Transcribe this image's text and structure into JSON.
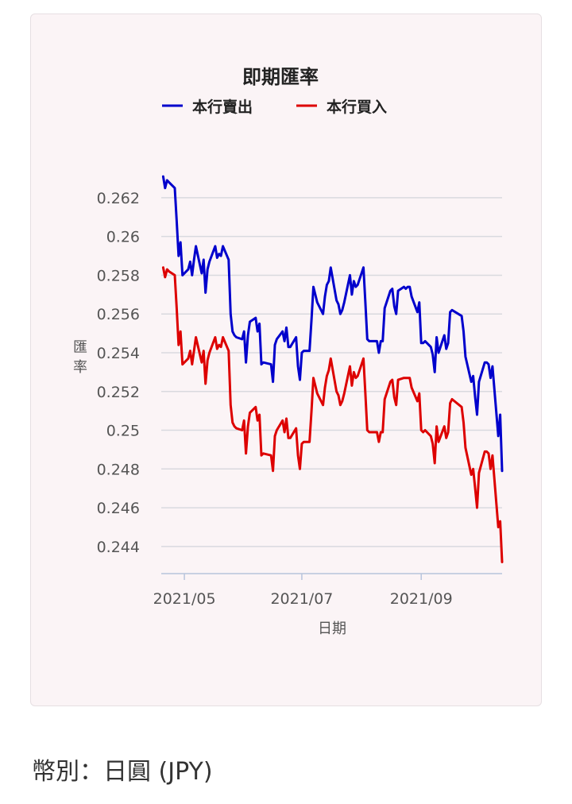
{
  "chart_data": {
    "type": "line",
    "title": "即期匯率",
    "xlabel": "日期",
    "ylabel": "匯率",
    "ylim": [
      0.2426,
      0.2638
    ],
    "yticks": [
      "0.244",
      "0.246",
      "0.248",
      "0.25",
      "0.252",
      "0.254",
      "0.256",
      "0.258",
      "0.26",
      "0.262"
    ],
    "xticks": [
      {
        "date": "2021-05-01",
        "label": "2021/05"
      },
      {
        "date": "2021-07-01",
        "label": "2021/07"
      },
      {
        "date": "2021-09-01",
        "label": "2021/09"
      }
    ],
    "xrange": [
      "2021-04-19",
      "2021-10-13"
    ],
    "grid": true,
    "legend_position": "top",
    "series": [
      {
        "name": "本行賣出",
        "color": "#0000cc",
        "points": [
          [
            "2021-04-20",
            0.2631
          ],
          [
            "2021-04-21",
            0.2625
          ],
          [
            "2021-04-22",
            0.2629
          ],
          [
            "2021-04-23",
            0.2628
          ],
          [
            "2021-04-26",
            0.2625
          ],
          [
            "2021-04-27",
            0.2608
          ],
          [
            "2021-04-28",
            0.259
          ],
          [
            "2021-04-29",
            0.2597
          ],
          [
            "2021-04-30",
            0.258
          ],
          [
            "2021-05-03",
            0.2583
          ],
          [
            "2021-05-04",
            0.2587
          ],
          [
            "2021-05-05",
            0.258
          ],
          [
            "2021-05-06",
            0.2588
          ],
          [
            "2021-05-07",
            0.2595
          ],
          [
            "2021-05-10",
            0.2581
          ],
          [
            "2021-05-11",
            0.2588
          ],
          [
            "2021-05-12",
            0.2571
          ],
          [
            "2021-05-13",
            0.2583
          ],
          [
            "2021-05-14",
            0.2587
          ],
          [
            "2021-05-17",
            0.2595
          ],
          [
            "2021-05-18",
            0.2589
          ],
          [
            "2021-05-19",
            0.2591
          ],
          [
            "2021-05-20",
            0.259
          ],
          [
            "2021-05-21",
            0.2595
          ],
          [
            "2021-05-24",
            0.2588
          ],
          [
            "2021-05-25",
            0.256
          ],
          [
            "2021-05-26",
            0.2551
          ],
          [
            "2021-05-27",
            0.2549
          ],
          [
            "2021-05-28",
            0.2548
          ],
          [
            "2021-05-31",
            0.2547
          ],
          [
            "2021-06-01",
            0.2551
          ],
          [
            "2021-06-02",
            0.2535
          ],
          [
            "2021-06-03",
            0.2549
          ],
          [
            "2021-06-04",
            0.2556
          ],
          [
            "2021-06-07",
            0.2558
          ],
          [
            "2021-06-08",
            0.2551
          ],
          [
            "2021-06-09",
            0.2555
          ],
          [
            "2021-06-10",
            0.2534
          ],
          [
            "2021-06-11",
            0.2535
          ],
          [
            "2021-06-15",
            0.2534
          ],
          [
            "2021-06-16",
            0.2525
          ],
          [
            "2021-06-17",
            0.2544
          ],
          [
            "2021-06-18",
            0.2547
          ],
          [
            "2021-06-21",
            0.2551
          ],
          [
            "2021-06-22",
            0.2546
          ],
          [
            "2021-06-23",
            0.2553
          ],
          [
            "2021-06-24",
            0.2543
          ],
          [
            "2021-06-25",
            0.2543
          ],
          [
            "2021-06-28",
            0.2548
          ],
          [
            "2021-06-29",
            0.2533
          ],
          [
            "2021-06-30",
            0.2526
          ],
          [
            "2021-07-01",
            0.254
          ],
          [
            "2021-07-02",
            0.2541
          ],
          [
            "2021-07-05",
            0.2541
          ],
          [
            "2021-07-06",
            0.2557
          ],
          [
            "2021-07-07",
            0.2574
          ],
          [
            "2021-07-08",
            0.257
          ],
          [
            "2021-07-09",
            0.2566
          ],
          [
            "2021-07-12",
            0.256
          ],
          [
            "2021-07-13",
            0.2569
          ],
          [
            "2021-07-14",
            0.2575
          ],
          [
            "2021-07-15",
            0.2577
          ],
          [
            "2021-07-16",
            0.2584
          ],
          [
            "2021-07-19",
            0.2567
          ],
          [
            "2021-07-20",
            0.2565
          ],
          [
            "2021-07-21",
            0.256
          ],
          [
            "2021-07-22",
            0.2562
          ],
          [
            "2021-07-23",
            0.2566
          ],
          [
            "2021-07-26",
            0.258
          ],
          [
            "2021-07-27",
            0.257
          ],
          [
            "2021-07-28",
            0.2577
          ],
          [
            "2021-07-29",
            0.2574
          ],
          [
            "2021-07-30",
            0.2575
          ],
          [
            "2021-08-02",
            0.2584
          ],
          [
            "2021-08-03",
            0.2566
          ],
          [
            "2021-08-04",
            0.2547
          ],
          [
            "2021-08-05",
            0.2546
          ],
          [
            "2021-08-06",
            0.2546
          ],
          [
            "2021-08-09",
            0.2546
          ],
          [
            "2021-08-10",
            0.254
          ],
          [
            "2021-08-11",
            0.2546
          ],
          [
            "2021-08-12",
            0.2546
          ],
          [
            "2021-08-13",
            0.2563
          ],
          [
            "2021-08-16",
            0.2572
          ],
          [
            "2021-08-17",
            0.2573
          ],
          [
            "2021-08-18",
            0.2564
          ],
          [
            "2021-08-19",
            0.256
          ],
          [
            "2021-08-20",
            0.2572
          ],
          [
            "2021-08-23",
            0.2574
          ],
          [
            "2021-08-24",
            0.2573
          ],
          [
            "2021-08-25",
            0.2574
          ],
          [
            "2021-08-26",
            0.2574
          ],
          [
            "2021-08-27",
            0.2569
          ],
          [
            "2021-08-30",
            0.2561
          ],
          [
            "2021-08-31",
            0.2566
          ],
          [
            "2021-09-01",
            0.2545
          ],
          [
            "2021-09-02",
            0.2545
          ],
          [
            "2021-09-03",
            0.2546
          ],
          [
            "2021-09-06",
            0.2543
          ],
          [
            "2021-09-07",
            0.2539
          ],
          [
            "2021-09-08",
            0.253
          ],
          [
            "2021-09-09",
            0.2548
          ],
          [
            "2021-09-10",
            0.254
          ],
          [
            "2021-09-13",
            0.2549
          ],
          [
            "2021-09-14",
            0.2542
          ],
          [
            "2021-09-15",
            0.2545
          ],
          [
            "2021-09-16",
            0.2561
          ],
          [
            "2021-09-17",
            0.2562
          ],
          [
            "2021-09-22",
            0.2559
          ],
          [
            "2021-09-23",
            0.2551
          ],
          [
            "2021-09-24",
            0.2538
          ],
          [
            "2021-09-27",
            0.2525
          ],
          [
            "2021-09-28",
            0.2528
          ],
          [
            "2021-09-29",
            0.2517
          ],
          [
            "2021-09-30",
            0.2508
          ],
          [
            "2021-10-01",
            0.2525
          ],
          [
            "2021-10-04",
            0.2535
          ],
          [
            "2021-10-05",
            0.2535
          ],
          [
            "2021-10-06",
            0.2534
          ],
          [
            "2021-10-07",
            0.2527
          ],
          [
            "2021-10-08",
            0.2533
          ],
          [
            "2021-10-11",
            0.2497
          ],
          [
            "2021-10-12",
            0.2508
          ],
          [
            "2021-10-13",
            0.2479
          ]
        ]
      },
      {
        "name": "本行買入",
        "color": "#dd0000",
        "points": [
          [
            "2021-04-20",
            0.2584
          ],
          [
            "2021-04-21",
            0.2579
          ],
          [
            "2021-04-22",
            0.2583
          ],
          [
            "2021-04-23",
            0.2582
          ],
          [
            "2021-04-26",
            0.258
          ],
          [
            "2021-04-27",
            0.2563
          ],
          [
            "2021-04-28",
            0.2544
          ],
          [
            "2021-04-29",
            0.2551
          ],
          [
            "2021-04-30",
            0.2534
          ],
          [
            "2021-05-03",
            0.2537
          ],
          [
            "2021-05-04",
            0.2541
          ],
          [
            "2021-05-05",
            0.2534
          ],
          [
            "2021-05-06",
            0.2541
          ],
          [
            "2021-05-07",
            0.2548
          ],
          [
            "2021-05-10",
            0.2535
          ],
          [
            "2021-05-11",
            0.2541
          ],
          [
            "2021-05-12",
            0.2524
          ],
          [
            "2021-05-13",
            0.2536
          ],
          [
            "2021-05-14",
            0.254
          ],
          [
            "2021-05-17",
            0.2548
          ],
          [
            "2021-05-18",
            0.2542
          ],
          [
            "2021-05-19",
            0.2544
          ],
          [
            "2021-05-20",
            0.2543
          ],
          [
            "2021-05-21",
            0.2548
          ],
          [
            "2021-05-24",
            0.2541
          ],
          [
            "2021-05-25",
            0.2513
          ],
          [
            "2021-05-26",
            0.2504
          ],
          [
            "2021-05-27",
            0.2502
          ],
          [
            "2021-05-28",
            0.2501
          ],
          [
            "2021-05-31",
            0.25
          ],
          [
            "2021-06-01",
            0.2505
          ],
          [
            "2021-06-02",
            0.2488
          ],
          [
            "2021-06-03",
            0.2502
          ],
          [
            "2021-06-04",
            0.2509
          ],
          [
            "2021-06-07",
            0.2512
          ],
          [
            "2021-06-08",
            0.2505
          ],
          [
            "2021-06-09",
            0.2508
          ],
          [
            "2021-06-10",
            0.2487
          ],
          [
            "2021-06-11",
            0.2488
          ],
          [
            "2021-06-15",
            0.2487
          ],
          [
            "2021-06-16",
            0.2479
          ],
          [
            "2021-06-17",
            0.2497
          ],
          [
            "2021-06-18",
            0.25
          ],
          [
            "2021-06-21",
            0.2505
          ],
          [
            "2021-06-22",
            0.2499
          ],
          [
            "2021-06-23",
            0.2506
          ],
          [
            "2021-06-24",
            0.2496
          ],
          [
            "2021-06-25",
            0.2496
          ],
          [
            "2021-06-28",
            0.2501
          ],
          [
            "2021-06-29",
            0.2487
          ],
          [
            "2021-06-30",
            0.248
          ],
          [
            "2021-07-01",
            0.2493
          ],
          [
            "2021-07-02",
            0.2494
          ],
          [
            "2021-07-05",
            0.2494
          ],
          [
            "2021-07-06",
            0.251
          ],
          [
            "2021-07-07",
            0.2527
          ],
          [
            "2021-07-08",
            0.2523
          ],
          [
            "2021-07-09",
            0.2519
          ],
          [
            "2021-07-12",
            0.2513
          ],
          [
            "2021-07-13",
            0.2522
          ],
          [
            "2021-07-14",
            0.2528
          ],
          [
            "2021-07-15",
            0.2531
          ],
          [
            "2021-07-16",
            0.2537
          ],
          [
            "2021-07-19",
            0.252
          ],
          [
            "2021-07-20",
            0.2518
          ],
          [
            "2021-07-21",
            0.2513
          ],
          [
            "2021-07-22",
            0.2515
          ],
          [
            "2021-07-23",
            0.2519
          ],
          [
            "2021-07-26",
            0.2533
          ],
          [
            "2021-07-27",
            0.2523
          ],
          [
            "2021-07-28",
            0.253
          ],
          [
            "2021-07-29",
            0.2527
          ],
          [
            "2021-07-30",
            0.2528
          ],
          [
            "2021-08-02",
            0.2537
          ],
          [
            "2021-08-03",
            0.2519
          ],
          [
            "2021-08-04",
            0.25
          ],
          [
            "2021-08-05",
            0.2499
          ],
          [
            "2021-08-06",
            0.2499
          ],
          [
            "2021-08-09",
            0.2499
          ],
          [
            "2021-08-10",
            0.2494
          ],
          [
            "2021-08-11",
            0.2499
          ],
          [
            "2021-08-12",
            0.2499
          ],
          [
            "2021-08-13",
            0.2516
          ],
          [
            "2021-08-16",
            0.2525
          ],
          [
            "2021-08-17",
            0.2526
          ],
          [
            "2021-08-18",
            0.2517
          ],
          [
            "2021-08-19",
            0.2513
          ],
          [
            "2021-08-20",
            0.2526
          ],
          [
            "2021-08-23",
            0.2527
          ],
          [
            "2021-08-24",
            0.2527
          ],
          [
            "2021-08-25",
            0.2527
          ],
          [
            "2021-08-26",
            0.2527
          ],
          [
            "2021-08-27",
            0.2522
          ],
          [
            "2021-08-30",
            0.2515
          ],
          [
            "2021-08-31",
            0.2519
          ],
          [
            "2021-09-01",
            0.25
          ],
          [
            "2021-09-02",
            0.2499
          ],
          [
            "2021-09-03",
            0.25
          ],
          [
            "2021-09-06",
            0.2497
          ],
          [
            "2021-09-07",
            0.2493
          ],
          [
            "2021-09-08",
            0.2483
          ],
          [
            "2021-09-09",
            0.2502
          ],
          [
            "2021-09-10",
            0.2494
          ],
          [
            "2021-09-13",
            0.2502
          ],
          [
            "2021-09-14",
            0.2496
          ],
          [
            "2021-09-15",
            0.2499
          ],
          [
            "2021-09-16",
            0.2514
          ],
          [
            "2021-09-17",
            0.2516
          ],
          [
            "2021-09-22",
            0.2512
          ],
          [
            "2021-09-23",
            0.2504
          ],
          [
            "2021-09-24",
            0.2491
          ],
          [
            "2021-09-27",
            0.2477
          ],
          [
            "2021-09-28",
            0.248
          ],
          [
            "2021-09-29",
            0.247
          ],
          [
            "2021-09-30",
            0.246
          ],
          [
            "2021-10-01",
            0.2478
          ],
          [
            "2021-10-04",
            0.2489
          ],
          [
            "2021-10-05",
            0.2489
          ],
          [
            "2021-10-06",
            0.2488
          ],
          [
            "2021-10-07",
            0.248
          ],
          [
            "2021-10-08",
            0.2487
          ],
          [
            "2021-10-11",
            0.245
          ],
          [
            "2021-10-12",
            0.2453
          ],
          [
            "2021-10-13",
            0.2432
          ]
        ]
      }
    ]
  },
  "footer": {
    "currency_label": "幣別：日圓 (JPY)"
  }
}
